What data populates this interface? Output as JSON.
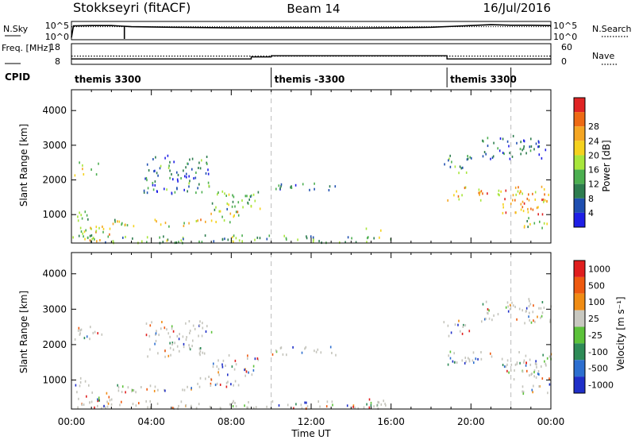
{
  "header": {
    "station": "Stokkseyri (fitACF)",
    "beam": "Beam 14",
    "date": "16/Jul/2016"
  },
  "chart_data": [
    {
      "type": "line",
      "panel": "noise",
      "left_label": "N.Sky",
      "right_label": "N.Search",
      "left_ticks": [
        "10^5",
        "10^0"
      ],
      "right_ticks": [
        "10^5",
        "10^0"
      ],
      "x_range_hours": [
        0,
        24
      ],
      "series": [
        {
          "name": "N.Sky",
          "style": "solid",
          "x": [
            0,
            0.1,
            0.2,
            1,
            2,
            2.5,
            3,
            5,
            8,
            10,
            12,
            14,
            16,
            18,
            19,
            20,
            21,
            22,
            23,
            24
          ],
          "y_decades": [
            0.2,
            4.3,
            4.3,
            4.4,
            4.4,
            4.2,
            4.0,
            3.8,
            3.6,
            3.6,
            3.6,
            3.5,
            3.6,
            3.8,
            4.1,
            4.4,
            4.7,
            4.5,
            4.5,
            4.4
          ]
        },
        {
          "name": "N.Search",
          "style": "dotted",
          "x": [
            0,
            24
          ],
          "y_decades": [
            4.0,
            4.0
          ]
        }
      ],
      "dropouts_hours": [
        2.65
      ]
    },
    {
      "type": "line",
      "panel": "frequency",
      "left_label": "Freq. [MHz]",
      "right_label": "Nave",
      "left_ticks": [
        "18",
        "8"
      ],
      "right_ticks": [
        "60",
        "0"
      ],
      "series": [
        {
          "name": "Freq.",
          "style": "solid",
          "x": [
            0,
            9,
            9,
            10,
            10,
            18.8,
            18.8,
            24
          ],
          "y": [
            10.3,
            10.3,
            11.5,
            11.5,
            12.2,
            12.2,
            10.3,
            10.3
          ]
        },
        {
          "name": "Nave",
          "style": "dotted",
          "x": [
            0,
            24
          ],
          "y": [
            24,
            24
          ]
        }
      ]
    },
    {
      "type": "table",
      "panel": "cpid",
      "label": "CPID",
      "segments": [
        {
          "start": 0,
          "end": 10,
          "text": "themis 3300"
        },
        {
          "start": 10,
          "end": 18.8,
          "text": "themis -3300"
        },
        {
          "start": 18.8,
          "end": 24,
          "text": "themis 3300"
        }
      ]
    },
    {
      "type": "heatmap",
      "panel": "power",
      "ylabel": "Slant Range [km]",
      "y_ticks": [
        1000,
        2000,
        3000,
        4000
      ],
      "ylim": [
        180,
        4600
      ],
      "colorbar_label": "Power [dB]",
      "colorbar_ticks": [
        4,
        8,
        12,
        16,
        20,
        24,
        28
      ],
      "colorbar_colors": [
        "#1f1fe6",
        "#1f4fb0",
        "#2e7d4f",
        "#4caf50",
        "#a8e63c",
        "#f5d21e",
        "#f5a623",
        "#ee6a14",
        "#e02424"
      ],
      "markers_hours": [
        10,
        22
      ],
      "echo_bands": [
        {
          "t0": 0.1,
          "t1": 1.5,
          "r0": 2100,
          "r1": 2500,
          "level": 0.55
        },
        {
          "t0": 0.1,
          "t1": 1.0,
          "r0": 800,
          "r1": 1100,
          "level": 0.45
        },
        {
          "t0": 0.1,
          "t1": 2.0,
          "r0": 200,
          "r1": 700,
          "level": 0.6
        },
        {
          "t0": 2.0,
          "t1": 6.2,
          "r0": 650,
          "r1": 850,
          "level": 0.55
        },
        {
          "t0": 6.2,
          "t1": 8.5,
          "r0": 750,
          "r1": 1100,
          "level": 0.6
        },
        {
          "t0": 3.6,
          "t1": 7.0,
          "r0": 1600,
          "r1": 2700,
          "level": 0.25
        },
        {
          "t0": 7.0,
          "t1": 9.5,
          "r0": 1100,
          "r1": 1700,
          "level": 0.4
        },
        {
          "t0": 10.0,
          "t1": 13.3,
          "r0": 1700,
          "r1": 1950,
          "level": 0.2
        },
        {
          "t0": 0.0,
          "t1": 16.0,
          "r0": 180,
          "r1": 400,
          "level": 0.35
        },
        {
          "t0": 14.7,
          "t1": 15.6,
          "r0": 200,
          "r1": 600,
          "level": 0.45
        },
        {
          "t0": 18.8,
          "t1": 24.0,
          "r0": 1400,
          "r1": 1800,
          "level": 0.7
        },
        {
          "t0": 21.5,
          "t1": 24.0,
          "r0": 1000,
          "r1": 1500,
          "level": 0.75
        },
        {
          "t0": 18.6,
          "t1": 20.0,
          "r0": 2200,
          "r1": 2700,
          "level": 0.3
        },
        {
          "t0": 20.5,
          "t1": 24.0,
          "r0": 2600,
          "r1": 3300,
          "level": 0.2
        },
        {
          "t0": 22.5,
          "t1": 24.0,
          "r0": 600,
          "r1": 900,
          "level": 0.5
        }
      ]
    },
    {
      "type": "heatmap",
      "panel": "velocity",
      "ylabel": "Slant Range [km]",
      "y_ticks": [
        1000,
        2000,
        3000,
        4000
      ],
      "ylim": [
        180,
        4600
      ],
      "x_ticks": [
        "00:00",
        "04:00",
        "08:00",
        "12:00",
        "16:00",
        "20:00",
        "00:00"
      ],
      "xlabel": "Time UT",
      "colorbar_label": "Velocity [m s⁻¹]",
      "colorbar_ticks": [
        1000,
        500,
        100,
        25,
        -25,
        -100,
        -500,
        -1000
      ],
      "colorbar_colors": [
        "#1f2fc8",
        "#2d6fd0",
        "#2e8b57",
        "#5cc23a",
        "#c8c8c0",
        "#f08c14",
        "#ee5a10",
        "#e01e1e"
      ],
      "markers_hours": [
        10,
        22
      ],
      "ground_scatter_color": "#c4c4bc"
    }
  ],
  "x_axis": {
    "ticks": [
      "00:00",
      "04:00",
      "08:00",
      "12:00",
      "16:00",
      "20:00",
      "00:00"
    ],
    "label": "Time UT"
  }
}
